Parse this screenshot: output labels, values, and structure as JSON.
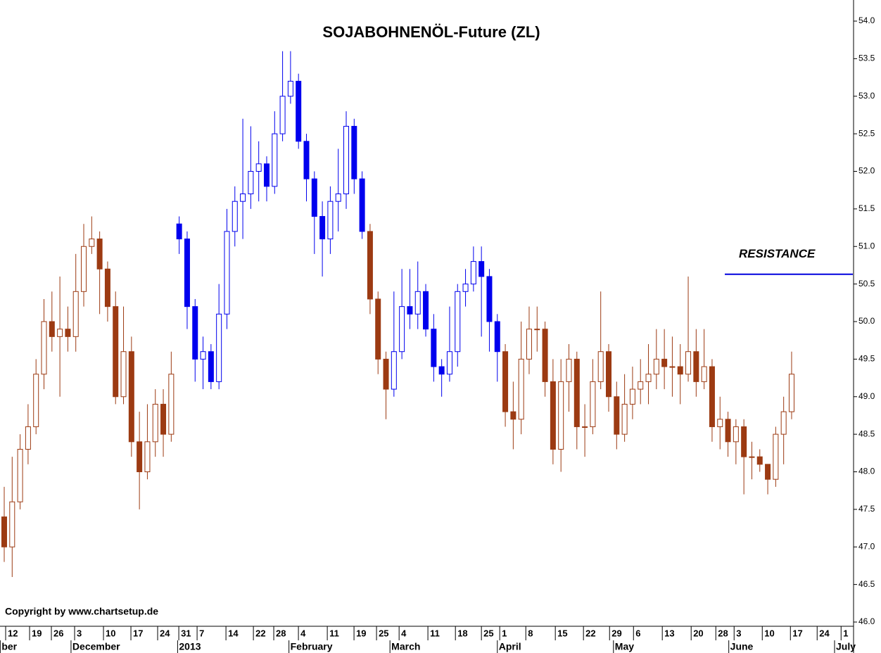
{
  "chart_data": {
    "type": "candlestick",
    "title": "SOJABOHNENÖL-Future  (ZL)",
    "copyright": "Copyright by www.chartsetup.de",
    "annotation": {
      "label": "RESISTANCE",
      "value": 50.63,
      "from": 90.6,
      "color": "#0000dd"
    },
    "open": [
      47.4,
      47.0,
      47.6,
      48.3,
      48.6,
      49.3,
      50.0,
      49.8,
      49.9,
      49.8,
      50.4,
      51.0,
      51.1,
      50.7,
      50.2,
      49.0,
      49.6,
      48.4,
      48.0,
      48.4,
      48.9,
      48.5,
      51.3,
      51.1,
      50.2,
      49.5,
      49.6,
      49.2,
      50.1,
      51.2,
      51.6,
      51.7,
      52.0,
      52.1,
      51.8,
      52.5,
      53.0,
      53.2,
      52.4,
      51.9,
      51.4,
      51.1,
      51.6,
      51.7,
      52.6,
      51.9,
      51.2,
      50.3,
      49.5,
      49.1,
      49.6,
      50.2,
      50.1,
      50.4,
      49.9,
      49.4,
      49.3,
      49.6,
      50.4,
      50.5,
      50.8,
      50.6,
      50.0,
      49.6,
      48.8,
      48.7,
      49.5,
      49.9,
      49.9,
      49.2,
      48.3,
      49.2,
      49.5,
      48.6,
      48.6,
      49.2,
      49.6,
      49.0,
      48.5,
      48.9,
      49.1,
      49.2,
      49.3,
      49.5,
      49.4,
      49.4,
      49.3,
      49.6,
      49.2,
      49.4,
      48.6,
      48.7,
      48.4,
      48.6,
      48.2,
      48.2,
      48.1,
      47.9,
      48.5,
      48.8
    ],
    "high": [
      47.8,
      48.2,
      48.5,
      48.9,
      49.5,
      50.3,
      50.4,
      50.6,
      50.2,
      50.9,
      51.3,
      51.4,
      51.2,
      50.8,
      50.4,
      50.2,
      49.8,
      48.8,
      48.9,
      49.1,
      49.1,
      49.6,
      51.4,
      51.2,
      50.3,
      49.8,
      49.7,
      50.5,
      51.5,
      51.8,
      52.7,
      52.6,
      52.4,
      52.2,
      52.8,
      53.6,
      53.6,
      53.3,
      52.5,
      52.0,
      51.6,
      51.8,
      52.3,
      52.8,
      52.7,
      52.0,
      51.3,
      50.4,
      49.6,
      50.4,
      50.7,
      50.7,
      50.8,
      50.5,
      50.1,
      49.5,
      50.2,
      50.5,
      50.7,
      51.0,
      51.0,
      50.7,
      50.1,
      49.7,
      49.2,
      50.0,
      50.2,
      50.2,
      50.0,
      49.5,
      49.5,
      49.7,
      49.6,
      48.9,
      49.5,
      50.4,
      49.7,
      49.2,
      49.3,
      49.4,
      49.5,
      49.7,
      49.9,
      49.9,
      49.8,
      49.7,
      50.6,
      49.9,
      49.9,
      49.5,
      49.0,
      48.8,
      48.7,
      48.7,
      48.4,
      48.3,
      48.1,
      48.6,
      49.0,
      49.6
    ],
    "low": [
      46.8,
      46.6,
      47.5,
      48.1,
      48.5,
      49.1,
      49.6,
      49.0,
      49.6,
      49.6,
      50.2,
      50.9,
      50.1,
      50.0,
      48.9,
      48.9,
      48.2,
      47.5,
      47.9,
      48.2,
      48.2,
      48.4,
      50.9,
      49.9,
      49.2,
      49.1,
      49.1,
      49.1,
      49.9,
      51.0,
      51.1,
      51.5,
      51.6,
      51.6,
      51.7,
      52.4,
      52.9,
      52.3,
      51.6,
      50.9,
      50.6,
      50.9,
      51.2,
      51.5,
      51.7,
      51.1,
      50.1,
      49.3,
      48.7,
      49.0,
      49.5,
      49.9,
      49.9,
      49.8,
      49.2,
      49.0,
      49.2,
      49.4,
      50.2,
      50.4,
      49.8,
      49.6,
      49.2,
      48.6,
      48.3,
      48.5,
      49.3,
      49.6,
      49.0,
      48.1,
      48.0,
      48.8,
      48.3,
      48.2,
      48.5,
      49.1,
      48.8,
      48.3,
      48.4,
      48.7,
      48.9,
      48.9,
      49.1,
      49.1,
      49.0,
      48.9,
      49.2,
      49.0,
      49.1,
      48.4,
      48.3,
      48.2,
      48.1,
      47.7,
      47.9,
      48.0,
      47.7,
      47.8,
      48.1,
      48.7
    ],
    "close": [
      47.0,
      47.6,
      48.3,
      48.6,
      49.3,
      50.0,
      49.8,
      49.9,
      49.8,
      50.4,
      51.0,
      51.1,
      50.7,
      50.2,
      49.0,
      49.6,
      48.4,
      48.0,
      48.4,
      48.9,
      48.5,
      49.3,
      51.1,
      50.2,
      49.5,
      49.6,
      49.2,
      50.1,
      51.2,
      51.6,
      51.7,
      52.0,
      52.1,
      51.8,
      52.5,
      53.0,
      53.2,
      52.4,
      51.9,
      51.4,
      51.1,
      51.6,
      51.7,
      52.6,
      51.9,
      51.2,
      50.3,
      49.5,
      49.1,
      49.6,
      50.2,
      50.1,
      50.4,
      49.9,
      49.4,
      49.3,
      49.6,
      50.4,
      50.5,
      50.8,
      50.6,
      50.0,
      49.6,
      48.8,
      48.7,
      49.5,
      49.9,
      49.9,
      49.2,
      48.3,
      49.2,
      49.5,
      48.6,
      48.6,
      49.2,
      49.6,
      49.0,
      48.5,
      48.9,
      49.1,
      49.2,
      49.3,
      49.5,
      49.4,
      49.4,
      49.3,
      49.6,
      49.2,
      49.4,
      48.6,
      48.7,
      48.4,
      48.6,
      48.2,
      48.2,
      48.1,
      47.9,
      48.5,
      48.8,
      49.3
    ],
    "color_changes": [
      {
        "start": 0,
        "color": "#9c3a12"
      },
      {
        "start": 22,
        "color": "#0000ee"
      },
      {
        "start": 46,
        "color": "#9c3a12"
      },
      {
        "start": 49,
        "color": "#0000ee"
      },
      {
        "start": 63,
        "color": "#9c3a12"
      }
    ],
    "xlim": [
      -0.53,
      106.7
    ],
    "ylim": [
      46,
      54
    ],
    "yticks": [
      {
        "value": 46,
        "label": "46.0"
      },
      46.5,
      {
        "value": 47,
        "label": "47.0"
      },
      47.5,
      {
        "value": 48,
        "label": "48.0"
      },
      48.5,
      {
        "value": 49,
        "label": "49.0"
      },
      49.5,
      {
        "value": 50,
        "label": "50.0"
      },
      50.5,
      {
        "value": 51,
        "label": "51.0"
      },
      51.5,
      {
        "value": 52,
        "label": "52.0"
      },
      52.5,
      {
        "value": 53,
        "label": "53.0"
      },
      53.5,
      {
        "value": 54,
        "label": "54.0"
      }
    ],
    "xticks": [
      {
        "value": 0.18,
        "label": "12"
      },
      {
        "value": 3.19,
        "label": "19"
      },
      {
        "value": 5.93,
        "label": "26"
      },
      {
        "value": 8.85,
        "label": "3"
      },
      {
        "value": 12.48,
        "label": "10"
      },
      {
        "value": 15.93,
        "label": "17"
      },
      {
        "value": 19.29,
        "label": "24"
      },
      {
        "value": 21.95,
        "label": "31"
      },
      {
        "value": 24.25,
        "label": "7"
      },
      {
        "value": 27.88,
        "label": "14"
      },
      {
        "value": 31.33,
        "label": "22"
      },
      {
        "value": 33.89,
        "label": "28"
      },
      {
        "value": 36.99,
        "label": "4"
      },
      {
        "value": 40.62,
        "label": "11"
      },
      {
        "value": 43.98,
        "label": "19"
      },
      {
        "value": 46.81,
        "label": "25"
      },
      {
        "value": 49.65,
        "label": "4"
      },
      {
        "value": 53.27,
        "label": "11"
      },
      {
        "value": 56.73,
        "label": "18"
      },
      {
        "value": 60.0,
        "label": "25"
      },
      {
        "value": 62.3,
        "label": "1"
      },
      {
        "value": 65.58,
        "label": "8"
      },
      {
        "value": 69.29,
        "label": "15"
      },
      {
        "value": 72.83,
        "label": "22"
      },
      {
        "value": 76.11,
        "label": "29"
      },
      {
        "value": 79.12,
        "label": "6"
      },
      {
        "value": 82.74,
        "label": "13"
      },
      {
        "value": 86.37,
        "label": "20"
      },
      {
        "value": 89.47,
        "label": "28"
      },
      {
        "value": 91.77,
        "label": "3"
      },
      {
        "value": 95.31,
        "label": "10"
      },
      {
        "value": 98.85,
        "label": "17"
      },
      {
        "value": 102.21,
        "label": "24"
      },
      {
        "value": 105.22,
        "label": "1"
      }
    ],
    "month_ticks": [
      {
        "value": -0.5,
        "label": "ber"
      },
      {
        "value": 8.4,
        "label": "December"
      },
      {
        "value": 21.8,
        "label": "2013"
      },
      {
        "value": 35.8,
        "label": "February"
      },
      {
        "value": 48.5,
        "label": "March"
      },
      {
        "value": 62.0,
        "label": "April"
      },
      {
        "value": 76.6,
        "label": "May"
      },
      {
        "value": 91.1,
        "label": "June"
      },
      {
        "value": 104.4,
        "label": "July"
      }
    ]
  }
}
